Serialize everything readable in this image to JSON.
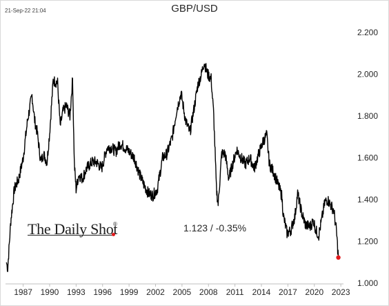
{
  "timestamp": "21-Sep-22 21:04",
  "logo": {
    "text": "The Daily Shot",
    "mark": "®"
  },
  "annotation": "1.123  /  -0.35%",
  "colors": {
    "line": "#000000",
    "last_point": "#e31a1c",
    "logo_dot": "#e31a1c"
  },
  "chart_data": {
    "type": "line",
    "title": "GBP/USD",
    "xlabel": "",
    "ylabel": "",
    "xlim": [
      1985.0,
      2023.3
    ],
    "ylim": [
      1.0,
      2.25
    ],
    "y_axis_side": "right",
    "grid": false,
    "legend": "none",
    "x_ticks": [
      1987,
      1990,
      1993,
      1996,
      1999,
      2002,
      2005,
      2008,
      2011,
      2014,
      2017,
      2020,
      2023
    ],
    "y_ticks": [
      "1.000",
      "1.200",
      "1.400",
      "1.600",
      "1.800",
      "2.000",
      "2.200"
    ],
    "series": [
      {
        "x": [
          1985.1,
          1985.25,
          1985.6,
          1986.0,
          1986.5,
          1987.0,
          1987.5,
          1988.0,
          1988.3,
          1988.6,
          1989.0,
          1989.3,
          1989.7,
          1990.0,
          1990.4,
          1990.9,
          1991.2,
          1991.5,
          1991.9,
          1992.3,
          1992.6,
          1992.8,
          1993.0,
          1993.3,
          1993.7,
          1994.2,
          1994.8,
          1995.3,
          1995.9,
          1996.5,
          1997.0,
          1997.5,
          1998.0,
          1998.5,
          1999.0,
          1999.6,
          2000.2,
          2000.7,
          2001.2,
          2001.7,
          2002.2,
          2002.8,
          2003.3,
          2003.9,
          2004.4,
          2004.9,
          2005.4,
          2005.9,
          2006.3,
          2006.8,
          2007.2,
          2007.5,
          2007.9,
          2008.3,
          2008.6,
          2008.9,
          2009.1,
          2009.5,
          2009.9,
          2010.3,
          2010.8,
          2011.2,
          2011.7,
          2012.2,
          2012.7,
          2013.2,
          2013.7,
          2014.2,
          2014.6,
          2014.9,
          2015.4,
          2015.9,
          2016.3,
          2016.5,
          2016.9,
          2017.3,
          2017.8,
          2018.1,
          2018.6,
          2019.0,
          2019.5,
          2019.9,
          2020.2,
          2020.5,
          2020.9,
          2021.2,
          2021.5,
          2021.9,
          2022.2,
          2022.5,
          2022.72
        ],
        "y": [
          1.1,
          1.07,
          1.3,
          1.45,
          1.5,
          1.6,
          1.78,
          1.9,
          1.78,
          1.72,
          1.58,
          1.62,
          1.58,
          1.72,
          1.97,
          1.96,
          1.75,
          1.82,
          1.85,
          1.8,
          1.98,
          1.57,
          1.45,
          1.52,
          1.5,
          1.55,
          1.58,
          1.58,
          1.55,
          1.65,
          1.65,
          1.63,
          1.67,
          1.65,
          1.63,
          1.6,
          1.52,
          1.47,
          1.43,
          1.42,
          1.45,
          1.6,
          1.62,
          1.7,
          1.83,
          1.91,
          1.78,
          1.72,
          1.82,
          1.95,
          2.0,
          2.06,
          2.0,
          1.98,
          1.8,
          1.45,
          1.38,
          1.62,
          1.62,
          1.5,
          1.58,
          1.64,
          1.6,
          1.57,
          1.6,
          1.55,
          1.62,
          1.68,
          1.71,
          1.57,
          1.53,
          1.47,
          1.42,
          1.32,
          1.24,
          1.25,
          1.32,
          1.43,
          1.33,
          1.28,
          1.27,
          1.3,
          1.25,
          1.23,
          1.32,
          1.39,
          1.4,
          1.37,
          1.35,
          1.25,
          1.123
        ]
      }
    ]
  }
}
